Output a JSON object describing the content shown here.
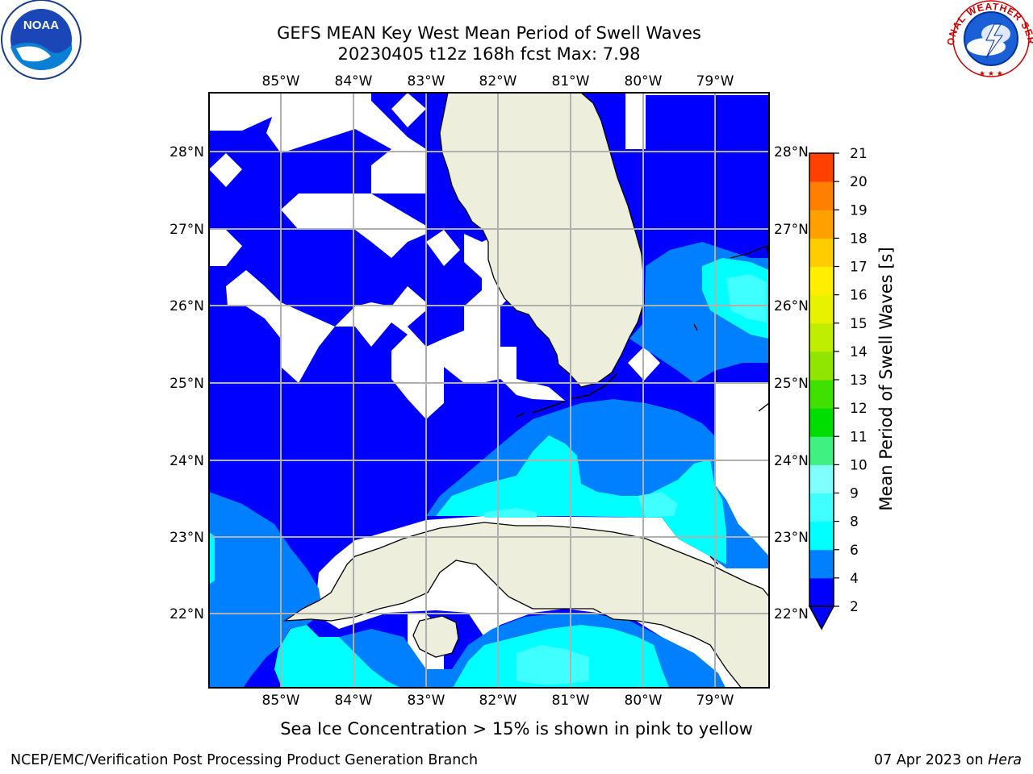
{
  "title": {
    "line1": "GEFS MEAN Key West Mean Period of Swell Waves",
    "line2": "20230405 t12z 168h fcst   Max: 7.98"
  },
  "map": {
    "lon_ticks": [
      "85°W",
      "84°W",
      "83°W",
      "82°W",
      "81°W",
      "80°W",
      "79°W"
    ],
    "lat_ticks": [
      "28°N",
      "27°N",
      "26°N",
      "25°N",
      "24°N",
      "23°N",
      "22°N"
    ],
    "colors": {
      "land": "#eeeedd",
      "ocean_deep": "#0000ff",
      "ocean_mid": "#0080ff",
      "ocean_light": "#00ffff",
      "ocean_pale": "#40ffff",
      "grid": "#b0b0b0"
    }
  },
  "colorbar": {
    "title": "Mean Period of Swell Waves [s]",
    "levels": [
      "2",
      "4",
      "6",
      "8",
      "9",
      "10",
      "11",
      "12",
      "13",
      "14",
      "15",
      "16",
      "17",
      "18",
      "19",
      "20",
      "21"
    ],
    "colors": [
      "#0000ff",
      "#0080ff",
      "#00ffff",
      "#40ffff",
      "#80ffff",
      "#40f080",
      "#00dd00",
      "#40e000",
      "#90e600",
      "#c0ee00",
      "#e6f200",
      "#ffee00",
      "#ffcc00",
      "#ffa000",
      "#ff8000",
      "#ff4000",
      "#ff0000"
    ]
  },
  "note": "Sea Ice Concentration > 15% is shown in pink to yellow",
  "footer": {
    "left": "NCEP/EMC/Verification Post Processing Product Generation Branch",
    "date": "07 Apr 2023 on ",
    "host": "Hera"
  },
  "logos": {
    "left": "NOAA",
    "right_text": "NATIONAL WEATHER SERVICE"
  }
}
